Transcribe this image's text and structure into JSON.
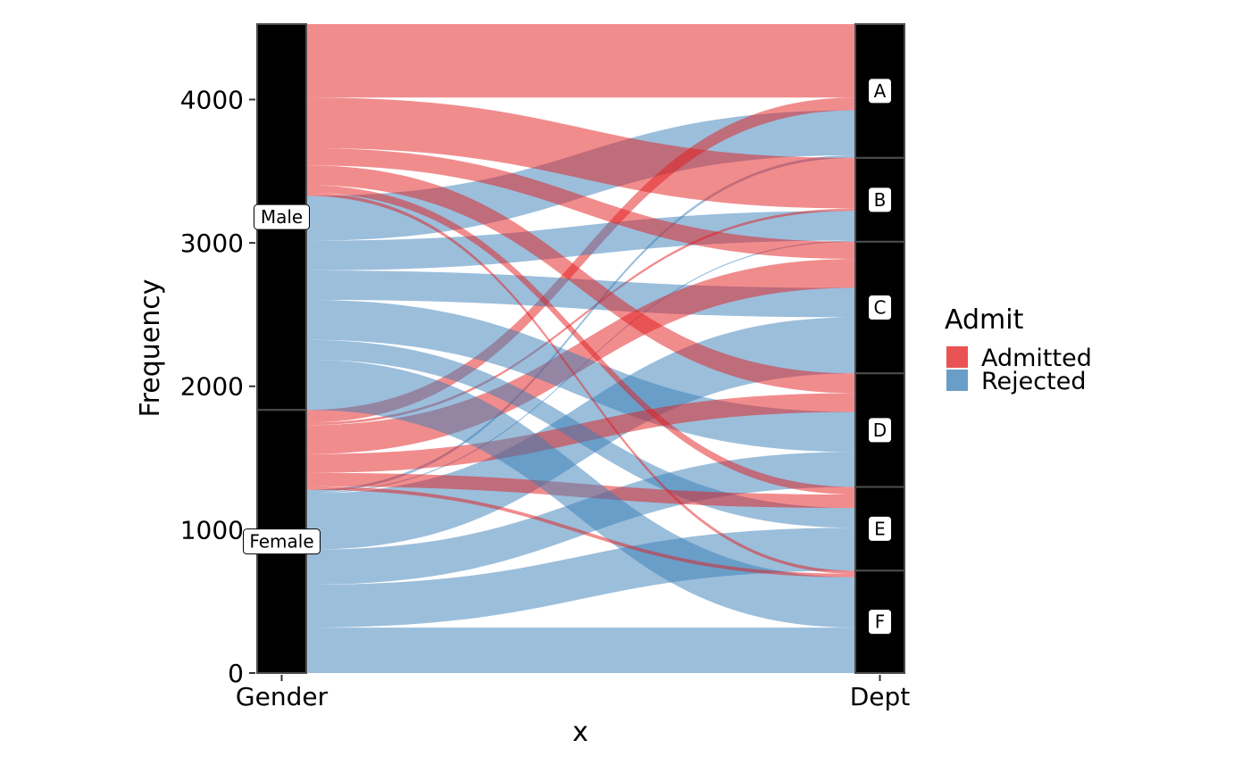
{
  "chart_data": {
    "type": "alluvial",
    "title": "",
    "xlabel": "x",
    "ylabel": "Frequency",
    "axes": [
      "Gender",
      "Dept"
    ],
    "ylim": [
      0,
      4526
    ],
    "yticks": [
      0,
      1000,
      2000,
      3000,
      4000
    ],
    "legend": {
      "title": "Admit",
      "position": "right",
      "entries": [
        {
          "label": "Admitted",
          "color": "#E41A1C"
        },
        {
          "label": "Rejected",
          "color": "#377EB8"
        }
      ]
    },
    "strata": {
      "Gender": [
        {
          "label": "Male",
          "value": 2691
        },
        {
          "label": "Female",
          "value": 1835
        }
      ],
      "Dept": [
        {
          "label": "A",
          "value": 933
        },
        {
          "label": "B",
          "value": 585
        },
        {
          "label": "C",
          "value": 918
        },
        {
          "label": "D",
          "value": 792
        },
        {
          "label": "E",
          "value": 584
        },
        {
          "label": "F",
          "value": 714
        }
      ]
    },
    "flows": [
      {
        "admit": "Admitted",
        "gender": "Male",
        "dept": "A",
        "value": 512
      },
      {
        "admit": "Rejected",
        "gender": "Male",
        "dept": "A",
        "value": 313
      },
      {
        "admit": "Admitted",
        "gender": "Female",
        "dept": "A",
        "value": 89
      },
      {
        "admit": "Rejected",
        "gender": "Female",
        "dept": "A",
        "value": 19
      },
      {
        "admit": "Admitted",
        "gender": "Male",
        "dept": "B",
        "value": 353
      },
      {
        "admit": "Rejected",
        "gender": "Male",
        "dept": "B",
        "value": 207
      },
      {
        "admit": "Admitted",
        "gender": "Female",
        "dept": "B",
        "value": 17
      },
      {
        "admit": "Rejected",
        "gender": "Female",
        "dept": "B",
        "value": 8
      },
      {
        "admit": "Admitted",
        "gender": "Male",
        "dept": "C",
        "value": 120
      },
      {
        "admit": "Rejected",
        "gender": "Male",
        "dept": "C",
        "value": 205
      },
      {
        "admit": "Admitted",
        "gender": "Female",
        "dept": "C",
        "value": 202
      },
      {
        "admit": "Rejected",
        "gender": "Female",
        "dept": "C",
        "value": 391
      },
      {
        "admit": "Admitted",
        "gender": "Male",
        "dept": "D",
        "value": 138
      },
      {
        "admit": "Rejected",
        "gender": "Male",
        "dept": "D",
        "value": 279
      },
      {
        "admit": "Admitted",
        "gender": "Female",
        "dept": "D",
        "value": 131
      },
      {
        "admit": "Rejected",
        "gender": "Female",
        "dept": "D",
        "value": 244
      },
      {
        "admit": "Admitted",
        "gender": "Male",
        "dept": "E",
        "value": 53
      },
      {
        "admit": "Rejected",
        "gender": "Male",
        "dept": "E",
        "value": 138
      },
      {
        "admit": "Admitted",
        "gender": "Female",
        "dept": "E",
        "value": 94
      },
      {
        "admit": "Rejected",
        "gender": "Female",
        "dept": "E",
        "value": 299
      },
      {
        "admit": "Admitted",
        "gender": "Male",
        "dept": "F",
        "value": 22
      },
      {
        "admit": "Rejected",
        "gender": "Male",
        "dept": "F",
        "value": 351
      },
      {
        "admit": "Admitted",
        "gender": "Female",
        "dept": "F",
        "value": 24
      },
      {
        "admit": "Rejected",
        "gender": "Female",
        "dept": "F",
        "value": 317
      }
    ]
  }
}
